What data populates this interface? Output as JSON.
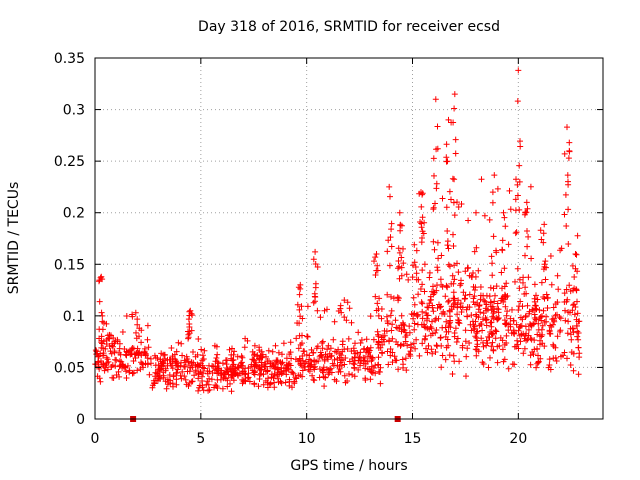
{
  "chart_data": {
    "type": "scatter",
    "title": "Day 318 of 2016, SRMTID for receiver ecsd",
    "xlabel": "GPS time / hours",
    "ylabel": "SRMTID / TECUs",
    "xlim": [
      0,
      24
    ],
    "ylim": [
      0,
      0.35
    ],
    "x_ticks": [
      0,
      5,
      10,
      15,
      20
    ],
    "x_tick_labels": [
      "0",
      "5",
      "10",
      "15",
      "20"
    ],
    "y_ticks": [
      0,
      0.05,
      0.1,
      0.15,
      0.2,
      0.25,
      0.3,
      0.35
    ],
    "y_tick_labels": [
      "0",
      "0.05",
      "0.1",
      "0.15",
      "0.2",
      "0.25",
      "0.3",
      "0.35"
    ],
    "grid": true,
    "marker": "+",
    "color": "#ff0000",
    "marker_color_dark": "#cc0000",
    "gap_markers_x": [
      1.8,
      14.3
    ],
    "segments": [
      {
        "x_start": 0.0,
        "x_end": 2.5,
        "base": 0.06,
        "spread": 0.03,
        "peak": 0.135,
        "density": 60
      },
      {
        "x_start": 2.5,
        "x_end": 9.5,
        "base": 0.047,
        "spread": 0.022,
        "peak": 0.1,
        "density": 60
      },
      {
        "x_start": 9.5,
        "x_end": 13.5,
        "base": 0.055,
        "spread": 0.025,
        "peak": 0.16,
        "density": 55
      },
      {
        "x_start": 13.5,
        "x_end": 15.0,
        "base": 0.075,
        "spread": 0.04,
        "peak": 0.225,
        "density": 50
      },
      {
        "x_start": 15.0,
        "x_end": 18.0,
        "base": 0.1,
        "spread": 0.06,
        "peak": 0.315,
        "density": 70
      },
      {
        "x_start": 18.0,
        "x_end": 21.0,
        "base": 0.09,
        "spread": 0.05,
        "peak": 0.338,
        "density": 70
      },
      {
        "x_start": 21.0,
        "x_end": 22.9,
        "base": 0.085,
        "spread": 0.05,
        "peak": 0.283,
        "density": 55
      }
    ],
    "spikes": [
      {
        "x": 0.3,
        "ymax": 0.138
      },
      {
        "x": 4.5,
        "ymax": 0.105
      },
      {
        "x": 9.7,
        "ymax": 0.13
      },
      {
        "x": 10.4,
        "ymax": 0.162
      },
      {
        "x": 13.3,
        "ymax": 0.16
      },
      {
        "x": 13.9,
        "ymax": 0.225
      },
      {
        "x": 14.4,
        "ymax": 0.2
      },
      {
        "x": 15.4,
        "ymax": 0.22
      },
      {
        "x": 16.1,
        "ymax": 0.31
      },
      {
        "x": 16.7,
        "ymax": 0.29
      },
      {
        "x": 17.0,
        "ymax": 0.315
      },
      {
        "x": 18.0,
        "ymax": 0.2
      },
      {
        "x": 18.8,
        "ymax": 0.22
      },
      {
        "x": 19.3,
        "ymax": 0.2
      },
      {
        "x": 20.0,
        "ymax": 0.338
      },
      {
        "x": 20.4,
        "ymax": 0.21
      },
      {
        "x": 21.2,
        "ymax": 0.18
      },
      {
        "x": 22.3,
        "ymax": 0.283
      },
      {
        "x": 22.7,
        "ymax": 0.16
      }
    ]
  }
}
